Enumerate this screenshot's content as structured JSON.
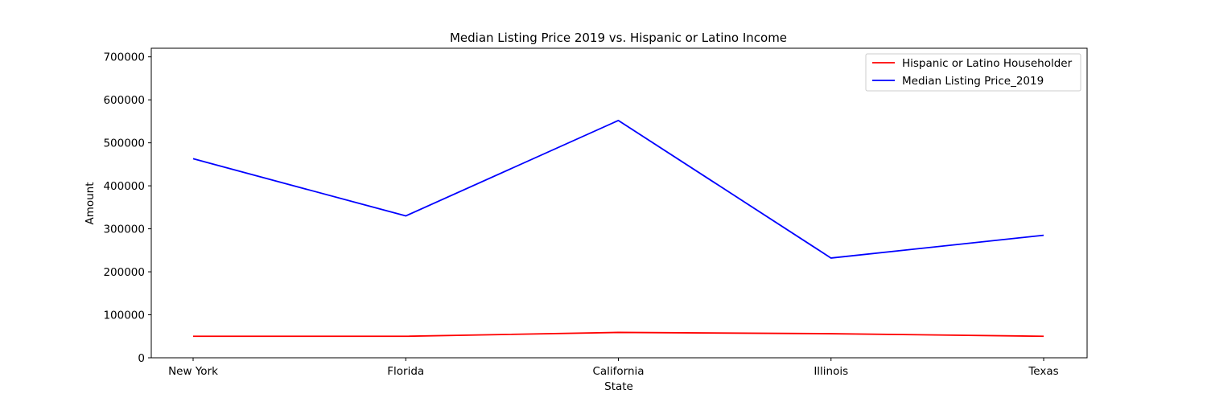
{
  "chart_data": {
    "type": "line",
    "title": "Median Listing Price 2019 vs. Hispanic or Latino Income",
    "xlabel": "State",
    "ylabel": "Amount",
    "categories": [
      "New York",
      "Florida",
      "California",
      "Illinois",
      "Texas"
    ],
    "ylim": [
      0,
      720000
    ],
    "yticks": [
      0,
      100000,
      200000,
      300000,
      400000,
      500000,
      600000,
      700000
    ],
    "grid": false,
    "legend_position": "top-right",
    "series": [
      {
        "name": "Hispanic or Latino Householder",
        "color": "#ff0000",
        "values": [
          50000,
          50000,
          59000,
          56000,
          50000
        ]
      },
      {
        "name": "Median Listing Price_2019",
        "color": "#0000ff",
        "values": [
          463000,
          330000,
          552000,
          232000,
          285000
        ]
      }
    ]
  }
}
